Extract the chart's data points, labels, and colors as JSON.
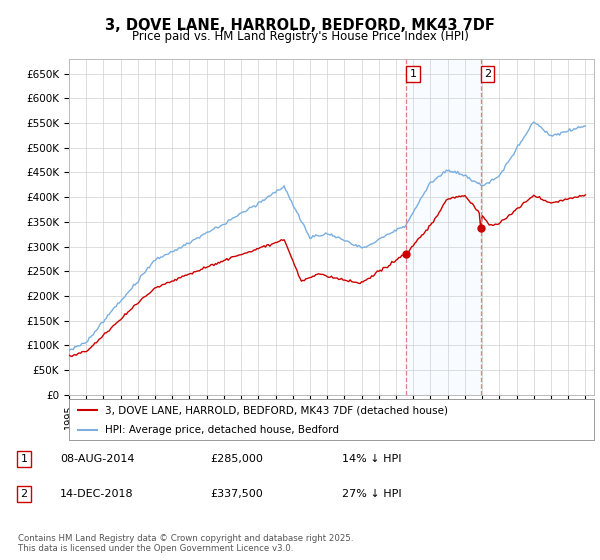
{
  "title": "3, DOVE LANE, HARROLD, BEDFORD, MK43 7DF",
  "subtitle": "Price paid vs. HM Land Registry's House Price Index (HPI)",
  "ylabel_ticks": [
    "£0",
    "£50K",
    "£100K",
    "£150K",
    "£200K",
    "£250K",
    "£300K",
    "£350K",
    "£400K",
    "£450K",
    "£500K",
    "£550K",
    "£600K",
    "£650K"
  ],
  "ylim": [
    0,
    680000
  ],
  "ytick_vals": [
    0,
    50000,
    100000,
    150000,
    200000,
    250000,
    300000,
    350000,
    400000,
    450000,
    500000,
    550000,
    600000,
    650000
  ],
  "hpi_color": "#7aafe0",
  "price_color": "#cc0000",
  "vline_color": "#e08080",
  "sale1_year": 2014.583,
  "sale1_price": 285000,
  "sale2_year": 2018.917,
  "sale2_price": 337500,
  "sale1_date": "08-AUG-2014",
  "sale1_price_str": "£285,000",
  "sale1_note": "14% ↓ HPI",
  "sale2_date": "14-DEC-2018",
  "sale2_price_str": "£337,500",
  "sale2_note": "27% ↓ HPI",
  "legend_line1": "3, DOVE LANE, HARROLD, BEDFORD, MK43 7DF (detached house)",
  "legend_line2": "HPI: Average price, detached house, Bedford",
  "footer": "Contains HM Land Registry data © Crown copyright and database right 2025.\nThis data is licensed under the Open Government Licence v3.0.",
  "shade_color": "#ddeeff",
  "marker_border_color": "#cc0000",
  "fig_bg": "#ffffff",
  "plot_bg": "#ffffff"
}
